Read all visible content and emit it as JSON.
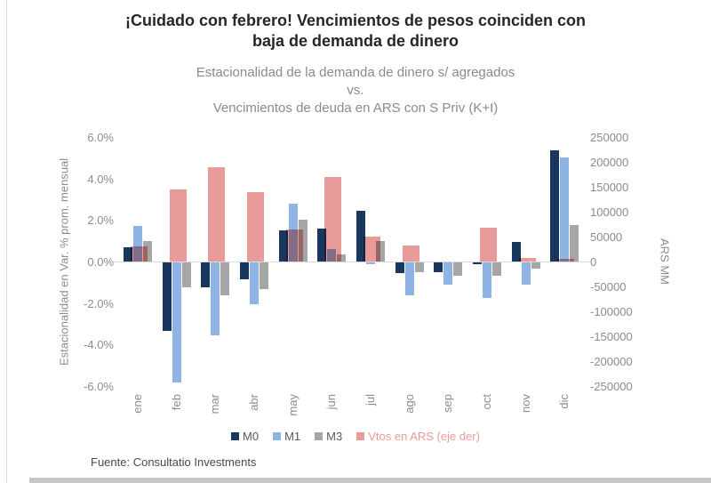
{
  "page": {
    "title_line1": "¡Cuidado con febrero! Vencimientos de pesos coinciden con",
    "title_line2": "baja de demanda de dinero",
    "footer": "Fuente: Consultatio Investments"
  },
  "chart_data": {
    "type": "bar",
    "title_lines": [
      "Estacionalidad de la demanda de dinero s/ agregados",
      "vs.",
      "Vencimientos de deuda en ARS con S Priv (K+I)"
    ],
    "categories": [
      "ene",
      "feb",
      "mar",
      "abr",
      "may",
      "jun",
      "jul",
      "ago",
      "sep",
      "oct",
      "nov",
      "dic"
    ],
    "series": [
      {
        "name": "M0",
        "axis": "left",
        "color": "#17375e",
        "label_color": "#595959",
        "values": [
          0.7,
          -3.3,
          -1.2,
          -0.8,
          1.5,
          1.6,
          2.45,
          -0.5,
          -0.45,
          -0.1,
          0.95,
          5.35
        ]
      },
      {
        "name": "M1",
        "axis": "left",
        "color": "#8eb4e3",
        "label_color": "#595959",
        "values": [
          1.7,
          -5.8,
          -3.5,
          -2.0,
          2.8,
          0.6,
          -0.1,
          -1.6,
          -1.05,
          -1.7,
          -1.05,
          5.0
        ]
      },
      {
        "name": "M3",
        "axis": "left",
        "color": "#a6a6a6",
        "label_color": "#595959",
        "values": [
          1.0,
          -1.2,
          -1.6,
          -1.3,
          2.0,
          0.35,
          1.0,
          -0.45,
          -0.65,
          -0.65,
          -0.3,
          1.75
        ]
      },
      {
        "name": "Vtos en ARS (eje der)",
        "axis": "right",
        "color": "#e89b98",
        "label_color": "#e89b98",
        "values": [
          30000,
          145000,
          190000,
          140000,
          65000,
          170000,
          50000,
          32000,
          0,
          68000,
          8000,
          5000
        ]
      }
    ],
    "left_axis": {
      "label": "Estacionalidad en Var. % prom. mensual",
      "ticks": [
        "6.0%",
        "4.0%",
        "2.0%",
        "0.0%",
        "-2.0%",
        "-4.0%",
        "-6.0%"
      ],
      "min": -6,
      "max": 6,
      "unit": "% prom. mensual"
    },
    "right_axis": {
      "label": "ARS MM",
      "ticks": [
        "250000",
        "200000",
        "150000",
        "100000",
        "50000",
        "0",
        "-50000",
        "-100000",
        "-150000",
        "-200000",
        "-250000"
      ],
      "min": -250000,
      "max": 250000,
      "unit": "ARS MM"
    },
    "legend_position": "bottom",
    "grid": false
  }
}
